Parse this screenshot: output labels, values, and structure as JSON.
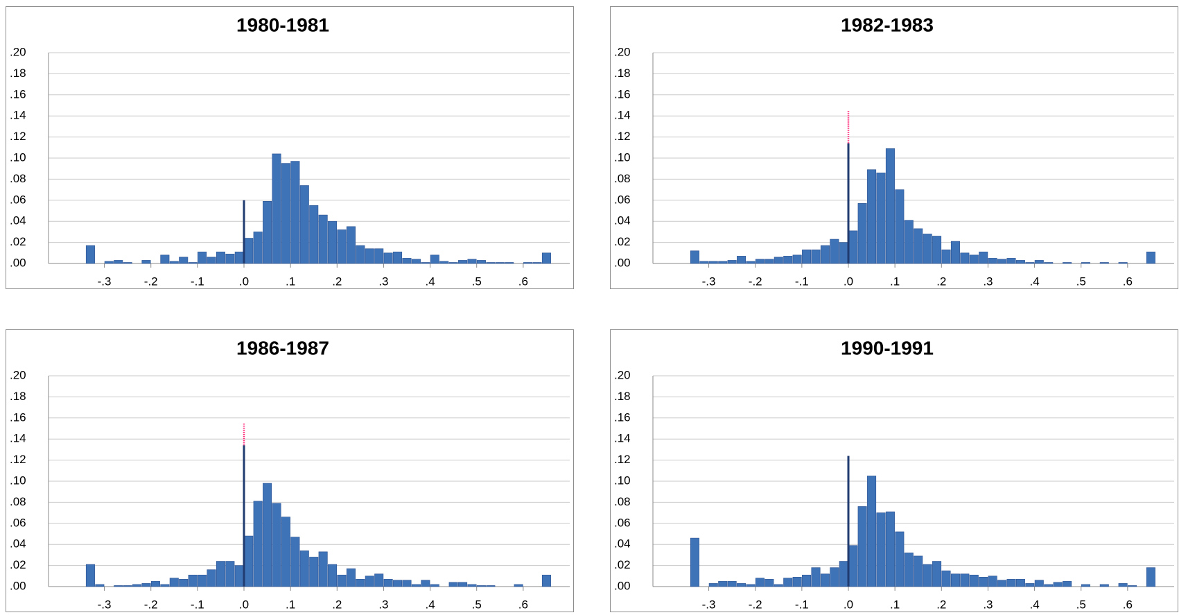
{
  "chart_data": [
    {
      "type": "histogram",
      "title": "1980-1981",
      "color": "#3f73b8",
      "grid": true,
      "bins": [
        -0.34,
        -0.32,
        -0.3,
        -0.28,
        -0.26,
        -0.24,
        -0.22,
        -0.2,
        -0.18,
        -0.16,
        -0.14,
        -0.12,
        -0.1,
        -0.08,
        -0.06,
        -0.04,
        -0.02,
        0,
        0.02,
        0.04,
        0.06,
        0.08,
        0.1,
        0.12,
        0.14,
        0.16,
        0.18,
        0.2,
        0.22,
        0.24,
        0.26,
        0.28,
        0.3,
        0.32,
        0.34,
        0.36,
        0.38,
        0.4,
        0.42,
        0.44,
        0.46,
        0.48,
        0.5,
        0.52,
        0.54,
        0.56,
        0.58,
        0.6,
        0.62,
        0.64,
        0.66
      ],
      "values": [
        0.017,
        0,
        0.002,
        0.003,
        0.001,
        0,
        0.003,
        0,
        0.008,
        0.002,
        0.006,
        0.001,
        0.011,
        0.006,
        0.011,
        0.009,
        0.011,
        0.024,
        0.03,
        0.059,
        0.104,
        0.095,
        0.097,
        0.074,
        0.055,
        0.046,
        0.04,
        0.032,
        0.035,
        0.017,
        0.014,
        0.014,
        0.01,
        0.011,
        0.005,
        0.004,
        0.001,
        0.008,
        0.002,
        0.001,
        0.003,
        0.004,
        0.003,
        0.001,
        0.001,
        0.001,
        0,
        0.001,
        0.001,
        0.01
      ],
      "spike": {
        "x": 0,
        "value": 0.06,
        "color": "#1f3b70"
      },
      "xlim": [
        -0.42,
        0.7
      ],
      "ylim": [
        0,
        0.2
      ],
      "xticks": [
        {
          "value": -0.3,
          "label": "-.3"
        },
        {
          "value": -0.2,
          "label": "-.2"
        },
        {
          "value": -0.1,
          "label": "-.1"
        },
        {
          "value": 0,
          "label": ".0"
        },
        {
          "value": 0.1,
          "label": ".1"
        },
        {
          "value": 0.2,
          "label": ".2"
        },
        {
          "value": 0.3,
          "label": ".3"
        },
        {
          "value": 0.4,
          "label": ".4"
        },
        {
          "value": 0.5,
          "label": ".5"
        },
        {
          "value": 0.6,
          "label": ".6"
        }
      ],
      "yticks": [
        {
          "value": 0,
          "label": ".00"
        },
        {
          "value": 0.02,
          "label": ".02"
        },
        {
          "value": 0.04,
          "label": ".04"
        },
        {
          "value": 0.06,
          "label": ".06"
        },
        {
          "value": 0.08,
          "label": ".08"
        },
        {
          "value": 0.1,
          "label": ".10"
        },
        {
          "value": 0.12,
          "label": ".12"
        },
        {
          "value": 0.14,
          "label": ".14"
        },
        {
          "value": 0.16,
          "label": ".16"
        },
        {
          "value": 0.18,
          "label": ".18"
        },
        {
          "value": 0.2,
          "label": ".20"
        }
      ]
    },
    {
      "type": "histogram",
      "title": "1982-1983",
      "color": "#3f73b8",
      "grid": true,
      "bins": [
        -0.34,
        -0.32,
        -0.3,
        -0.28,
        -0.26,
        -0.24,
        -0.22,
        -0.2,
        -0.18,
        -0.16,
        -0.14,
        -0.12,
        -0.1,
        -0.08,
        -0.06,
        -0.04,
        -0.02,
        0,
        0.02,
        0.04,
        0.06,
        0.08,
        0.1,
        0.12,
        0.14,
        0.16,
        0.18,
        0.2,
        0.22,
        0.24,
        0.26,
        0.28,
        0.3,
        0.32,
        0.34,
        0.36,
        0.38,
        0.4,
        0.42,
        0.44,
        0.46,
        0.48,
        0.5,
        0.52,
        0.54,
        0.56,
        0.58,
        0.6,
        0.62,
        0.64,
        0.66
      ],
      "values": [
        0.012,
        0.002,
        0.002,
        0.002,
        0.003,
        0.007,
        0.002,
        0.004,
        0.004,
        0.006,
        0.007,
        0.008,
        0.013,
        0.013,
        0.017,
        0.023,
        0.02,
        0.031,
        0.057,
        0.089,
        0.086,
        0.109,
        0.07,
        0.041,
        0.033,
        0.028,
        0.026,
        0.013,
        0.021,
        0.01,
        0.008,
        0.011,
        0.005,
        0.004,
        0.005,
        0.003,
        0.001,
        0.003,
        0.001,
        0,
        0.001,
        0,
        0.001,
        0,
        0.001,
        0,
        0.001,
        0,
        0,
        0.011
      ],
      "spike": {
        "x": 0,
        "value": 0.114,
        "top": 0.145,
        "color": "#1f3b70",
        "top_color": "#ff2a7a"
      },
      "xlim": [
        -0.42,
        0.7
      ],
      "ylim": [
        0,
        0.2
      ],
      "xticks": [
        {
          "value": -0.3,
          "label": "-.3"
        },
        {
          "value": -0.2,
          "label": "-.2"
        },
        {
          "value": -0.1,
          "label": "-.1"
        },
        {
          "value": 0,
          "label": ".0"
        },
        {
          "value": 0.1,
          "label": ".1"
        },
        {
          "value": 0.2,
          "label": ".2"
        },
        {
          "value": 0.3,
          "label": ".3"
        },
        {
          "value": 0.4,
          "label": ".4"
        },
        {
          "value": 0.5,
          "label": ".5"
        },
        {
          "value": 0.6,
          "label": ".6"
        }
      ],
      "yticks": [
        {
          "value": 0,
          "label": ".00"
        },
        {
          "value": 0.02,
          "label": ".02"
        },
        {
          "value": 0.04,
          "label": ".04"
        },
        {
          "value": 0.06,
          "label": ".06"
        },
        {
          "value": 0.08,
          "label": ".08"
        },
        {
          "value": 0.1,
          "label": ".10"
        },
        {
          "value": 0.12,
          "label": ".12"
        },
        {
          "value": 0.14,
          "label": ".14"
        },
        {
          "value": 0.16,
          "label": ".16"
        },
        {
          "value": 0.18,
          "label": ".18"
        },
        {
          "value": 0.2,
          "label": ".20"
        }
      ]
    },
    {
      "type": "histogram",
      "title": "1986-1987",
      "color": "#3f73b8",
      "grid": true,
      "bins": [
        -0.34,
        -0.32,
        -0.3,
        -0.28,
        -0.26,
        -0.24,
        -0.22,
        -0.2,
        -0.18,
        -0.16,
        -0.14,
        -0.12,
        -0.1,
        -0.08,
        -0.06,
        -0.04,
        -0.02,
        0,
        0.02,
        0.04,
        0.06,
        0.08,
        0.1,
        0.12,
        0.14,
        0.16,
        0.18,
        0.2,
        0.22,
        0.24,
        0.26,
        0.28,
        0.3,
        0.32,
        0.34,
        0.36,
        0.38,
        0.4,
        0.42,
        0.44,
        0.46,
        0.48,
        0.5,
        0.52,
        0.54,
        0.56,
        0.58,
        0.6,
        0.62,
        0.64,
        0.66
      ],
      "values": [
        0.021,
        0.002,
        0,
        0.001,
        0.001,
        0.002,
        0.003,
        0.005,
        0.002,
        0.008,
        0.007,
        0.011,
        0.011,
        0.016,
        0.024,
        0.024,
        0.02,
        0.048,
        0.081,
        0.098,
        0.079,
        0.066,
        0.047,
        0.034,
        0.028,
        0.033,
        0.021,
        0.011,
        0.017,
        0.007,
        0.01,
        0.012,
        0.007,
        0.006,
        0.006,
        0.002,
        0.006,
        0.002,
        0,
        0.004,
        0.004,
        0.002,
        0.001,
        0.001,
        0,
        0,
        0.002,
        0,
        0,
        0.011
      ],
      "spike": {
        "x": 0,
        "value": 0.134,
        "top": 0.155,
        "color": "#1f3b70",
        "top_color": "#ff2a7a"
      },
      "xlim": [
        -0.42,
        0.7
      ],
      "ylim": [
        0,
        0.2
      ],
      "xticks": [
        {
          "value": -0.3,
          "label": "-.3"
        },
        {
          "value": -0.2,
          "label": "-.2"
        },
        {
          "value": -0.1,
          "label": "-.1"
        },
        {
          "value": 0,
          "label": ".0"
        },
        {
          "value": 0.1,
          "label": ".1"
        },
        {
          "value": 0.2,
          "label": ".2"
        },
        {
          "value": 0.3,
          "label": ".3"
        },
        {
          "value": 0.4,
          "label": ".4"
        },
        {
          "value": 0.5,
          "label": ".5"
        },
        {
          "value": 0.6,
          "label": ".6"
        }
      ],
      "yticks": [
        {
          "value": 0,
          "label": ".00"
        },
        {
          "value": 0.02,
          "label": ".02"
        },
        {
          "value": 0.04,
          "label": ".04"
        },
        {
          "value": 0.06,
          "label": ".06"
        },
        {
          "value": 0.08,
          "label": ".08"
        },
        {
          "value": 0.1,
          "label": ".10"
        },
        {
          "value": 0.12,
          "label": ".12"
        },
        {
          "value": 0.14,
          "label": ".14"
        },
        {
          "value": 0.16,
          "label": ".16"
        },
        {
          "value": 0.18,
          "label": ".18"
        },
        {
          "value": 0.2,
          "label": ".20"
        }
      ]
    },
    {
      "type": "histogram",
      "title": "1990-1991",
      "color": "#3f73b8",
      "grid": true,
      "bins": [
        -0.34,
        -0.32,
        -0.3,
        -0.28,
        -0.26,
        -0.24,
        -0.22,
        -0.2,
        -0.18,
        -0.16,
        -0.14,
        -0.12,
        -0.1,
        -0.08,
        -0.06,
        -0.04,
        -0.02,
        0,
        0.02,
        0.04,
        0.06,
        0.08,
        0.1,
        0.12,
        0.14,
        0.16,
        0.18,
        0.2,
        0.22,
        0.24,
        0.26,
        0.28,
        0.3,
        0.32,
        0.34,
        0.36,
        0.38,
        0.4,
        0.42,
        0.44,
        0.46,
        0.48,
        0.5,
        0.52,
        0.54,
        0.56,
        0.58,
        0.6,
        0.62,
        0.64,
        0.66
      ],
      "values": [
        0.046,
        0,
        0.003,
        0.005,
        0.005,
        0.003,
        0.002,
        0.008,
        0.007,
        0.002,
        0.008,
        0.009,
        0.011,
        0.018,
        0.012,
        0.018,
        0.024,
        0.039,
        0.076,
        0.105,
        0.07,
        0.071,
        0.052,
        0.032,
        0.029,
        0.021,
        0.024,
        0.015,
        0.012,
        0.012,
        0.011,
        0.009,
        0.01,
        0.006,
        0.007,
        0.007,
        0.003,
        0.006,
        0.002,
        0.004,
        0.005,
        0,
        0.002,
        0,
        0.002,
        0,
        0.003,
        0.001,
        0,
        0.018
      ],
      "spike": {
        "x": 0,
        "value": 0.124,
        "color": "#1f3b70"
      },
      "xlim": [
        -0.42,
        0.7
      ],
      "ylim": [
        0,
        0.2
      ],
      "xticks": [
        {
          "value": -0.3,
          "label": "-.3"
        },
        {
          "value": -0.2,
          "label": "-.2"
        },
        {
          "value": -0.1,
          "label": "-.1"
        },
        {
          "value": 0,
          "label": ".0"
        },
        {
          "value": 0.1,
          "label": ".1"
        },
        {
          "value": 0.2,
          "label": ".2"
        },
        {
          "value": 0.3,
          "label": ".3"
        },
        {
          "value": 0.4,
          "label": ".4"
        },
        {
          "value": 0.5,
          "label": ".5"
        },
        {
          "value": 0.6,
          "label": ".6"
        }
      ],
      "yticks": [
        {
          "value": 0,
          "label": ".00"
        },
        {
          "value": 0.02,
          "label": ".02"
        },
        {
          "value": 0.04,
          "label": ".04"
        },
        {
          "value": 0.06,
          "label": ".06"
        },
        {
          "value": 0.08,
          "label": ".08"
        },
        {
          "value": 0.1,
          "label": ".10"
        },
        {
          "value": 0.12,
          "label": ".12"
        },
        {
          "value": 0.14,
          "label": ".14"
        },
        {
          "value": 0.16,
          "label": ".16"
        },
        {
          "value": 0.18,
          "label": ".18"
        },
        {
          "value": 0.2,
          "label": ".20"
        }
      ]
    }
  ]
}
